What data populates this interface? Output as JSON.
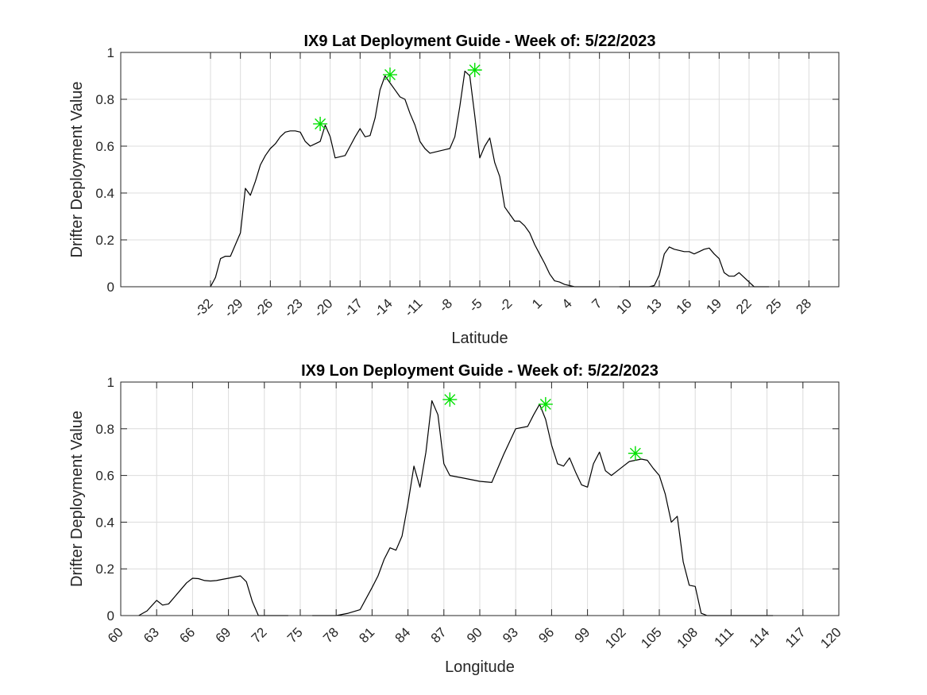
{
  "chart_data": [
    {
      "type": "line",
      "title": "IX9 Lat Deployment Guide - Week of: 5/22/2023",
      "xlabel": "Latitude",
      "ylabel": "Drifter Deployment Value",
      "xlim": [
        -41,
        31
      ],
      "ylim": [
        0,
        1
      ],
      "grid": true,
      "xticks": [
        -32,
        -29,
        -26,
        -23,
        -20,
        -17,
        -14,
        -11,
        -8,
        -5,
        -2,
        1,
        4,
        7,
        10,
        13,
        16,
        19,
        22,
        25,
        28
      ],
      "xtick_rotation": 45,
      "yticks": [
        0,
        0.2,
        0.4,
        0.6,
        0.8,
        1
      ],
      "ytick_labels": [
        "0",
        "0.2",
        "0.4",
        "0.6",
        "0.8",
        "1"
      ],
      "series": [
        {
          "x": [
            -32,
            -31.5,
            -31,
            -30.5,
            -30,
            -29.5,
            -29,
            -28.5,
            -28,
            -27.5,
            -27,
            -26.5,
            -26,
            -25.5,
            -25,
            -24.5,
            -24,
            -23.5,
            -23,
            -22.5,
            -22,
            -21.5,
            -21,
            -20.5,
            -20,
            -19.5,
            -19,
            -18.5,
            -18,
            -17.5,
            -17,
            -16.5,
            -16,
            -15.5,
            -15,
            -14.5,
            -14,
            -13.5,
            -13,
            -12.5,
            -12,
            -11.5,
            -11,
            -10.5,
            -10,
            -9.5,
            -9,
            -8.5,
            -8,
            -7.5,
            -7,
            -6.5,
            -6,
            -5.5,
            -5,
            -4.5,
            -4,
            -3.5,
            -3,
            -2.5,
            -2,
            -1.5,
            -1,
            -0.5,
            0,
            0.5,
            1,
            1.5,
            2,
            2.5,
            3,
            3.5,
            4,
            4.5,
            5,
            5.5,
            6,
            7,
            8,
            9,
            10,
            11,
            12,
            12.5,
            13,
            13.5,
            14,
            14.5,
            15,
            15.5,
            16,
            16.5,
            17,
            17.5,
            18,
            18.5,
            19,
            19.5,
            20,
            20.5,
            21,
            21.5,
            22,
            22.5,
            23,
            23.5,
            24
          ],
          "y": [
            0.0,
            0.04,
            0.12,
            0.13,
            0.13,
            0.18,
            0.23,
            0.42,
            0.39,
            0.45,
            0.52,
            0.56,
            0.59,
            0.61,
            0.64,
            0.66,
            0.665,
            0.665,
            0.66,
            0.62,
            0.6,
            0.61,
            0.62,
            0.69,
            0.64,
            0.55,
            0.555,
            0.56,
            0.6,
            0.64,
            0.675,
            0.64,
            0.645,
            0.72,
            0.84,
            0.9,
            0.87,
            0.84,
            0.81,
            0.8,
            0.74,
            0.69,
            0.62,
            0.59,
            0.57,
            0.575,
            0.58,
            0.585,
            0.59,
            0.64,
            0.77,
            0.92,
            0.9,
            0.73,
            0.55,
            0.6,
            0.635,
            0.53,
            0.47,
            0.34,
            0.31,
            0.28,
            0.28,
            0.26,
            0.23,
            0.18,
            0.14,
            0.1,
            0.055,
            0.025,
            0.02,
            0.01,
            0.005,
            0.0,
            0.0,
            0.0,
            0.0,
            0.0,
            null,
            0.0,
            0.0,
            0.0,
            0.0,
            0.005,
            0.05,
            0.14,
            0.17,
            0.16,
            0.155,
            0.15,
            0.15,
            0.14,
            0.15,
            0.16,
            0.165,
            0.14,
            0.12,
            0.06,
            0.045,
            0.045,
            0.06,
            0.04,
            0.02,
            0.0,
            0.0,
            0.0,
            0.0
          ]
        }
      ],
      "markers": {
        "symbol": "asterisk",
        "color": "#00e000",
        "points": [
          {
            "x": -21,
            "y": 0.695
          },
          {
            "x": -14,
            "y": 0.905
          },
          {
            "x": -5.5,
            "y": 0.925
          }
        ]
      }
    },
    {
      "type": "line",
      "title": "IX9 Lon Deployment Guide - Week of: 5/22/2023",
      "xlabel": "Longitude",
      "ylabel": "Drifter Deployment Value",
      "xlim": [
        60,
        120
      ],
      "ylim": [
        0,
        1
      ],
      "grid": true,
      "xticks": [
        60,
        63,
        66,
        69,
        72,
        75,
        78,
        81,
        84,
        87,
        90,
        93,
        96,
        99,
        102,
        105,
        108,
        111,
        114,
        117,
        120
      ],
      "xtick_rotation": 45,
      "yticks": [
        0,
        0.2,
        0.4,
        0.6,
        0.8,
        1
      ],
      "ytick_labels": [
        "0",
        "0.2",
        "0.4",
        "0.6",
        "0.8",
        "1"
      ],
      "series": [
        {
          "x": [
            61.5,
            62.2,
            63,
            63.5,
            64,
            64.5,
            65,
            65.5,
            66,
            66.5,
            67,
            67.5,
            68,
            68.5,
            69,
            69.5,
            70,
            70.5,
            71,
            71.5,
            72,
            72.5,
            73,
            74,
            75,
            76,
            77,
            78,
            79,
            80,
            81,
            81.5,
            82,
            82.5,
            83,
            83.5,
            84,
            84.5,
            85,
            85.5,
            86,
            86.5,
            87,
            87.5,
            88,
            88.5,
            89,
            89.5,
            90,
            91,
            92,
            93,
            94,
            94.5,
            95,
            95.5,
            96,
            96.5,
            97,
            97.5,
            98,
            98.5,
            99,
            99.5,
            100,
            100.5,
            101,
            101.5,
            102,
            102.5,
            103,
            103.5,
            104,
            104.5,
            105,
            105.5,
            106,
            106.5,
            107,
            107.5,
            108,
            108.5,
            109,
            109.5,
            110,
            110.5,
            111,
            111.5,
            112,
            112.5,
            113,
            113.5,
            114,
            114.5
          ],
          "y": [
            0.0,
            0.02,
            0.065,
            0.045,
            0.05,
            0.08,
            0.11,
            0.14,
            0.16,
            0.158,
            0.15,
            0.148,
            0.15,
            0.155,
            0.16,
            0.165,
            0.17,
            0.145,
            0.06,
            0.0,
            0.0,
            0.0,
            0.0,
            0.0,
            null,
            0.0,
            0.0,
            0.0,
            0.01,
            0.025,
            0.12,
            0.17,
            0.24,
            0.29,
            0.28,
            0.34,
            0.48,
            0.64,
            0.55,
            0.7,
            0.92,
            0.86,
            0.65,
            0.6,
            0.595,
            0.59,
            0.585,
            0.58,
            0.575,
            0.57,
            0.69,
            0.8,
            0.81,
            0.86,
            0.905,
            0.84,
            0.73,
            0.65,
            0.64,
            0.675,
            0.615,
            0.56,
            0.55,
            0.65,
            0.7,
            0.62,
            0.6,
            0.62,
            0.64,
            0.66,
            0.665,
            0.67,
            0.665,
            0.63,
            0.6,
            0.52,
            0.4,
            0.425,
            0.23,
            0.13,
            0.125,
            0.01,
            0.0,
            0.0,
            0.0,
            0.0,
            0.0,
            0.0,
            0.0,
            0.0,
            0.0,
            0.0,
            0.0,
            0.0
          ],
          "x_full": [
            61.5,
            62.2,
            63,
            63.5,
            64,
            64.5,
            65,
            65.5,
            66,
            66.5,
            67,
            67.5,
            68,
            68.5,
            69,
            69.5,
            70,
            70.5,
            71,
            71.5,
            72,
            72.5,
            73,
            74,
            75,
            76,
            77,
            78,
            79,
            80,
            81,
            81.5,
            82,
            82.5,
            83,
            83.5,
            84,
            84.5,
            85,
            85.5,
            86,
            86.5,
            87,
            87.5,
            88,
            88.5,
            89,
            89.5,
            90,
            91,
            92,
            93,
            94,
            94.5,
            95,
            95.5,
            96,
            96.5,
            97,
            97.5,
            98,
            98.5,
            99,
            99.5,
            100,
            100.5,
            101,
            101.5,
            102,
            102.5,
            103,
            103.5,
            104,
            104.5,
            105,
            105.5,
            106,
            106.5,
            107,
            107.5,
            108,
            108.5,
            109,
            109.5,
            110,
            110.5,
            111,
            111.5,
            112,
            112.5,
            113,
            113.5,
            114,
            114.5
          ]
        }
      ],
      "markers": {
        "symbol": "asterisk",
        "color": "#00e000",
        "points": [
          {
            "x": 87.5,
            "y": 0.925
          },
          {
            "x": 95.5,
            "y": 0.905
          },
          {
            "x": 103,
            "y": 0.695
          }
        ]
      }
    }
  ]
}
